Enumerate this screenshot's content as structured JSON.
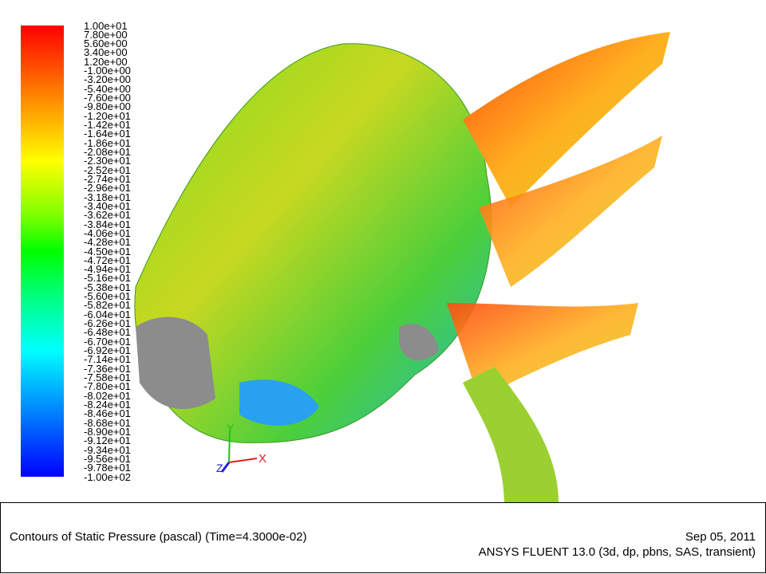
{
  "legend": {
    "labels": [
      "1.00e+01",
      "7.80e+00",
      "5.60e+00",
      "3.40e+00",
      "1.20e+00",
      "-1.00e+00",
      "-3.20e+00",
      "-5.40e+00",
      "-7.60e+00",
      "-9.80e+00",
      "-1.20e+01",
      "-1.42e+01",
      "-1.64e+01",
      "-1.86e+01",
      "-2.08e+01",
      "-2.30e+01",
      "-2.52e+01",
      "-2.74e+01",
      "-2.96e+01",
      "-3.18e+01",
      "-3.40e+01",
      "-3.62e+01",
      "-3.84e+01",
      "-4.06e+01",
      "-4.28e+01",
      "-4.50e+01",
      "-4.72e+01",
      "-4.94e+01",
      "-5.16e+01",
      "-5.38e+01",
      "-5.60e+01",
      "-5.82e+01",
      "-6.04e+01",
      "-6.26e+01",
      "-6.48e+01",
      "-6.70e+01",
      "-6.92e+01",
      "-7.14e+01",
      "-7.36e+01",
      "-7.58e+01",
      "-7.80e+01",
      "-8.02e+01",
      "-8.24e+01",
      "-8.46e+01",
      "-8.68e+01",
      "-8.90e+01",
      "-9.12e+01",
      "-9.34e+01",
      "-9.56e+01",
      "-9.78e+01",
      "-1.00e+02"
    ]
  },
  "axes": {
    "x": "X",
    "y": "Y",
    "z": "Z"
  },
  "footer": {
    "title": "Contours of Static Pressure (pascal)  (Time=4.3000e-02)",
    "date": "Sep 05, 2011",
    "software": "ANSYS FLUENT 13.0 (3d, dp, pbns, SAS, transient)"
  }
}
